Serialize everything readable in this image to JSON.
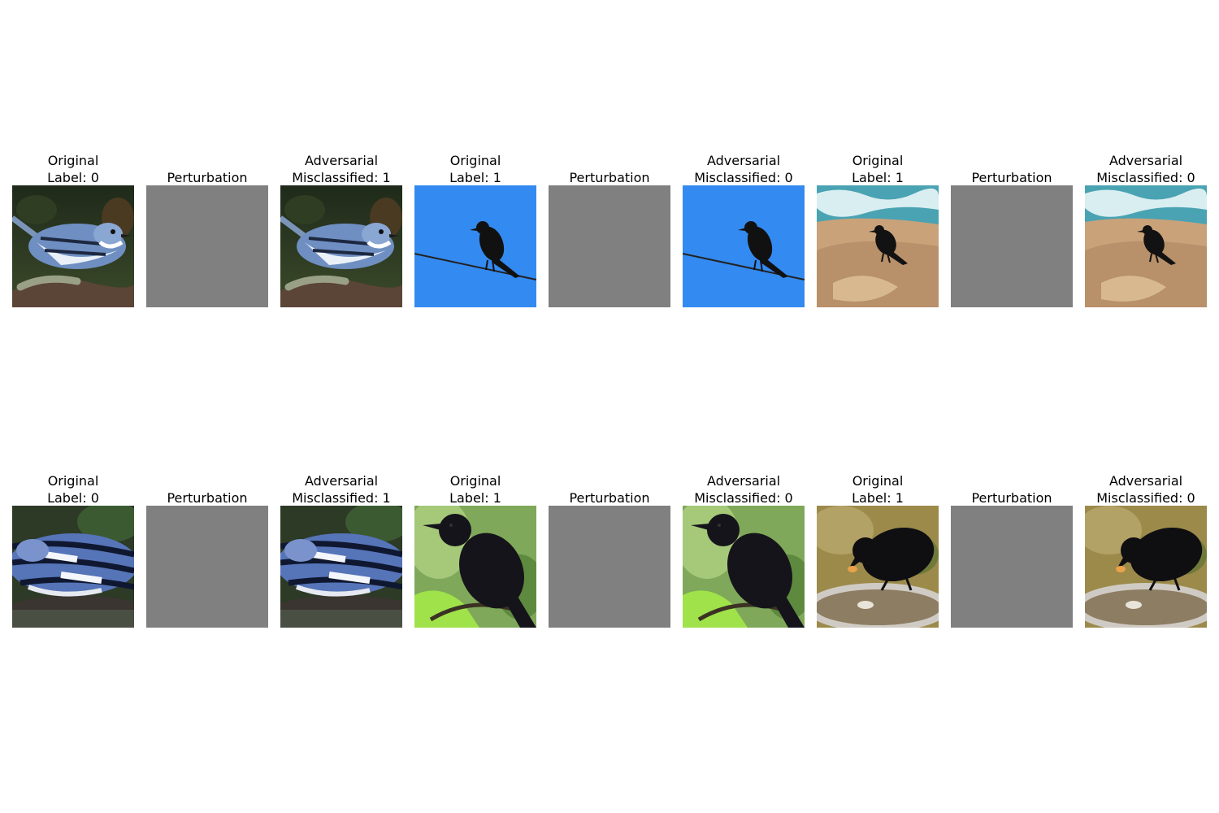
{
  "rows": [
    {
      "triplets": [
        {
          "original": {
            "line1": "Original",
            "line2": "Label: 0"
          },
          "perturbation": {
            "line1": "Perturbation"
          },
          "adversarial": {
            "line1": "Adversarial",
            "line2": "Misclassified: 1"
          },
          "scene": "warbler-on-branch"
        },
        {
          "original": {
            "line1": "Original",
            "line2": "Label: 1"
          },
          "perturbation": {
            "line1": "Perturbation"
          },
          "adversarial": {
            "line1": "Adversarial",
            "line2": "Misclassified: 0"
          },
          "scene": "crow-on-wire"
        },
        {
          "original": {
            "line1": "Original",
            "line2": "Label: 1"
          },
          "perturbation": {
            "line1": "Perturbation"
          },
          "adversarial": {
            "line1": "Adversarial",
            "line2": "Misclassified: 0"
          },
          "scene": "crow-on-beach"
        }
      ]
    },
    {
      "triplets": [
        {
          "original": {
            "line1": "Original",
            "line2": "Label: 0"
          },
          "perturbation": {
            "line1": "Perturbation"
          },
          "adversarial": {
            "line1": "Adversarial",
            "line2": "Misclassified: 1"
          },
          "scene": "warbler-closeup"
        },
        {
          "original": {
            "line1": "Original",
            "line2": "Label: 1"
          },
          "perturbation": {
            "line1": "Perturbation"
          },
          "adversarial": {
            "line1": "Adversarial",
            "line2": "Misclassified: 0"
          },
          "scene": "crow-on-branch"
        },
        {
          "original": {
            "line1": "Original",
            "line2": "Label: 1"
          },
          "perturbation": {
            "line1": "Perturbation"
          },
          "adversarial": {
            "line1": "Adversarial",
            "line2": "Misclassified: 0"
          },
          "scene": "crow-at-birdbath"
        }
      ]
    }
  ],
  "perturbation_color": "#808080"
}
